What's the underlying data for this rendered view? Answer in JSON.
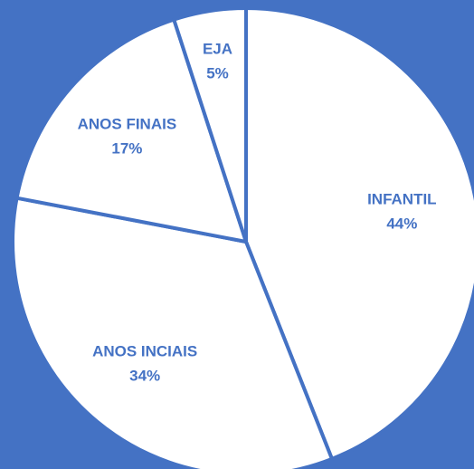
{
  "chart_data": {
    "type": "pie",
    "categories": [
      "INFANTIL",
      "ANOS INCIAIS",
      "ANOS FINAIS",
      "EJA"
    ],
    "values": [
      44,
      34,
      17,
      5
    ],
    "value_labels": [
      "44%",
      "34%",
      "17%",
      "5%"
    ],
    "color": "#ffffff",
    "edge_color": "#4472c4",
    "background": "#4472c4"
  }
}
